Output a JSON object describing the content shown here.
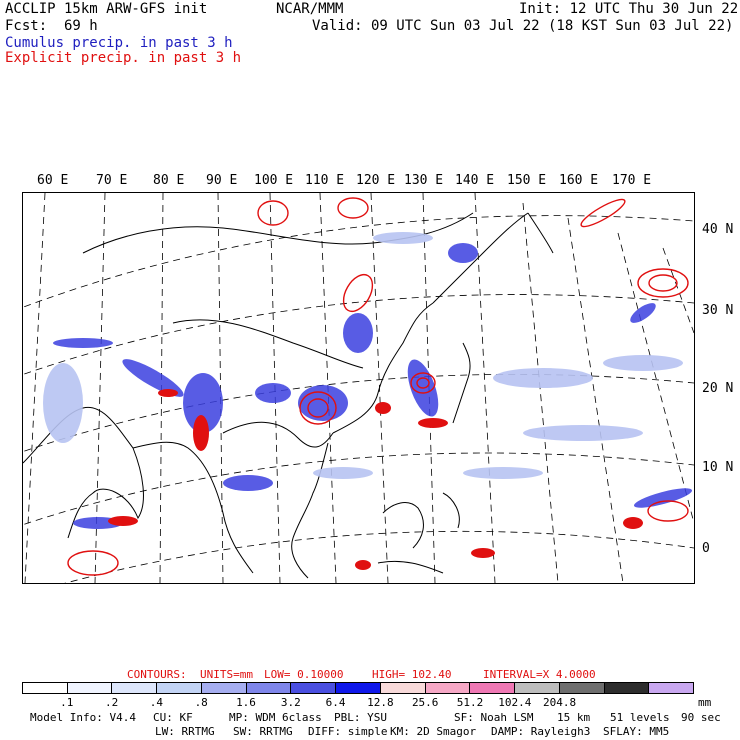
{
  "header": {
    "title": "ACCLIP 15km ARW-GFS init",
    "fcst_label": "Fcst:",
    "fcst_value": "69 h",
    "center": "NCAR/MMM",
    "init": "Init: 12 UTC Thu 30 Jun 22",
    "valid": "Valid: 09 UTC Sun 03 Jul 22 (18 KST Sun 03 Jul 22)"
  },
  "legend": {
    "cumulus": "Cumulus precip. in past 3 h",
    "explicit": "Explicit precip. in past 3 h",
    "cumulus_color": "#1f1fbf",
    "explicit_color": "#e01010"
  },
  "map": {
    "lon_labels": [
      "60 E",
      "70 E",
      "80 E",
      "90 E",
      "100 E",
      "110 E",
      "120 E",
      "130 E",
      "140 E",
      "150 E",
      "160 E",
      "170 E"
    ],
    "lat_labels": [
      "40 N",
      "30 N",
      "20 N",
      "10 N",
      "0"
    ]
  },
  "contours": {
    "label": "CONTOURS:",
    "units": "UNITS=mm",
    "low": "LOW= 0.10000",
    "high": "HIGH= 102.40",
    "interval": "INTERVAL=X 4.0000"
  },
  "colorbar": {
    "ticks": [
      ".1",
      ".2",
      ".4",
      ".8",
      "1.6",
      "3.2",
      "6.4",
      "12.8",
      "25.6",
      "51.2",
      "102.4",
      "204.8"
    ],
    "colors": [
      "#ffffff",
      "#f0f4ff",
      "#dde6fb",
      "#c3d4f5",
      "#a6aef0",
      "#7f86ea",
      "#4a4fe0",
      "#0f17ea",
      "#f8dada",
      "#f6a8c6",
      "#ef78b4",
      "#bdbdbd",
      "#6e6e6e",
      "#2d2d2d",
      "#c9a8f0"
    ],
    "units": "mm"
  },
  "model_info": {
    "line1": [
      "Model Info: V4.4",
      "CU: KF",
      "MP: WDM 6class",
      "PBL: YSU",
      "SF: Noah LSM",
      "15 km",
      "51 levels",
      "90 sec"
    ],
    "line2": [
      "LW: RRTMG",
      "SW: RRTMG",
      "DIFF: simple",
      "KM: 2D Smagor",
      "DAMP: Rayleigh3",
      "SFLAY: MM5"
    ]
  }
}
